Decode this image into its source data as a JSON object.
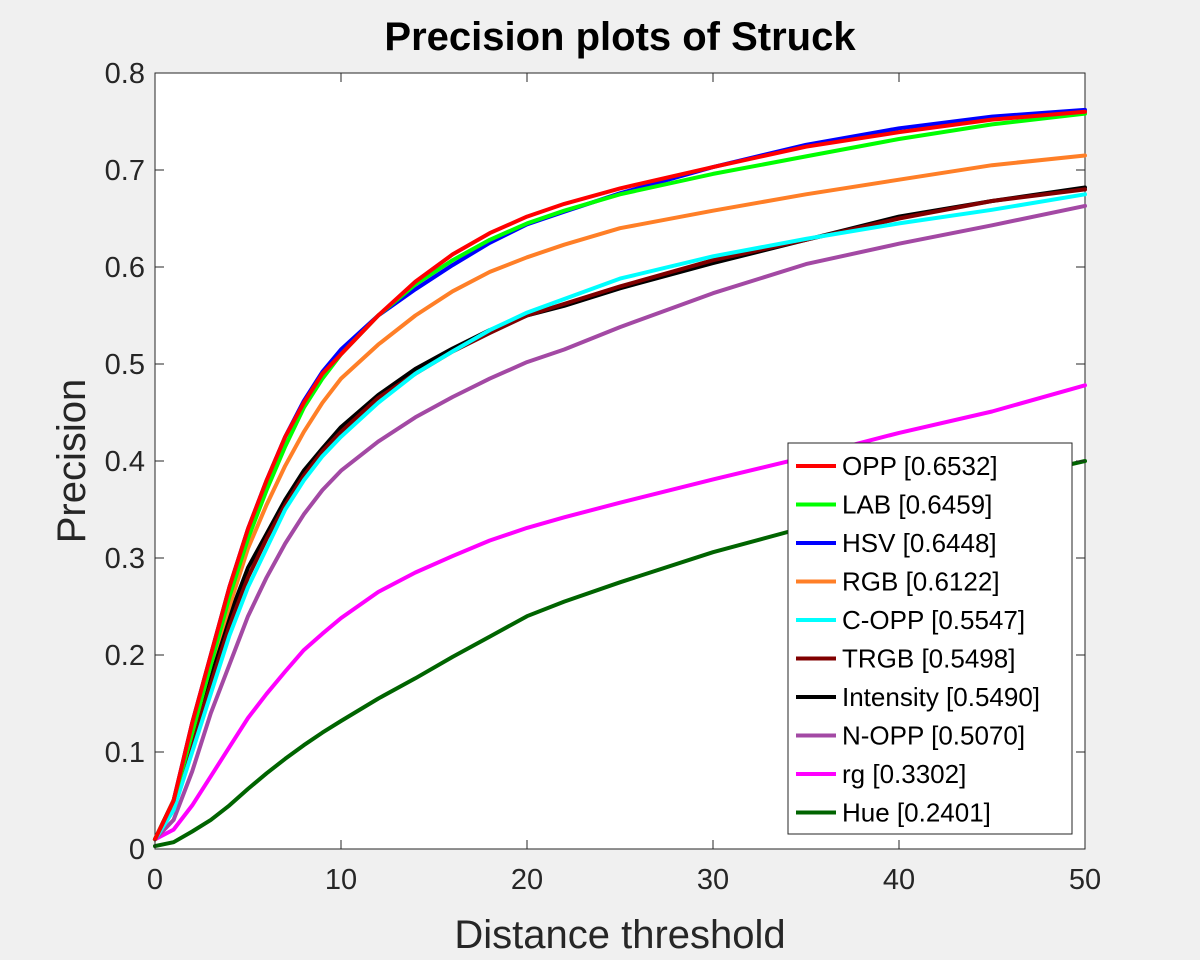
{
  "chart_data": {
    "type": "line",
    "title": "Precision plots of Struck",
    "xlabel": "Distance threshold",
    "ylabel": "Precision",
    "xlim": [
      0,
      50
    ],
    "ylim": [
      0,
      0.8
    ],
    "xticks": [
      0,
      10,
      20,
      30,
      40,
      50
    ],
    "xtick_labels": [
      "0",
      "10",
      "20",
      "30",
      "40",
      "50"
    ],
    "yticks": [
      0,
      0.1,
      0.2,
      0.3,
      0.4,
      0.5,
      0.6,
      0.7,
      0.8
    ],
    "ytick_labels": [
      "0",
      "0.1",
      "0.2",
      "0.3",
      "0.4",
      "0.5",
      "0.6",
      "0.7",
      "0.8"
    ],
    "grid": false,
    "legend_position": "bottom-right",
    "x": [
      0,
      1,
      2,
      3,
      4,
      5,
      6,
      7,
      8,
      9,
      10,
      12,
      14,
      16,
      18,
      20,
      22,
      25,
      30,
      35,
      40,
      45,
      50
    ],
    "series": [
      {
        "name": "OPP [0.6532]",
        "color": "#ff0000",
        "values": [
          0.01,
          0.05,
          0.13,
          0.2,
          0.27,
          0.33,
          0.38,
          0.425,
          0.46,
          0.49,
          0.51,
          0.55,
          0.585,
          0.613,
          0.635,
          0.652,
          0.665,
          0.681,
          0.703,
          0.724,
          0.739,
          0.752,
          0.76
        ]
      },
      {
        "name": "LAB [0.6459]",
        "color": "#00ff00",
        "values": [
          0.01,
          0.05,
          0.12,
          0.19,
          0.26,
          0.32,
          0.37,
          0.415,
          0.455,
          0.485,
          0.51,
          0.55,
          0.582,
          0.607,
          0.628,
          0.645,
          0.658,
          0.675,
          0.696,
          0.714,
          0.732,
          0.747,
          0.758
        ]
      },
      {
        "name": "HSV [0.6448]",
        "color": "#0000ff",
        "values": [
          0.01,
          0.05,
          0.13,
          0.2,
          0.27,
          0.33,
          0.38,
          0.425,
          0.462,
          0.492,
          0.515,
          0.55,
          0.577,
          0.602,
          0.625,
          0.644,
          0.657,
          0.676,
          0.703,
          0.726,
          0.743,
          0.755,
          0.762
        ]
      },
      {
        "name": "RGB [0.6122]",
        "color": "#ff7f27",
        "values": [
          0.01,
          0.05,
          0.12,
          0.19,
          0.25,
          0.31,
          0.355,
          0.395,
          0.43,
          0.46,
          0.485,
          0.52,
          0.55,
          0.575,
          0.595,
          0.61,
          0.623,
          0.64,
          0.658,
          0.675,
          0.69,
          0.705,
          0.715
        ]
      },
      {
        "name": "C-OPP [0.5547]",
        "color": "#00ffff",
        "values": [
          0.01,
          0.04,
          0.1,
          0.16,
          0.22,
          0.27,
          0.31,
          0.35,
          0.38,
          0.405,
          0.425,
          0.46,
          0.49,
          0.513,
          0.535,
          0.553,
          0.567,
          0.588,
          0.611,
          0.629,
          0.645,
          0.659,
          0.675
        ]
      },
      {
        "name": "TRGB [0.5498]",
        "color": "#800000",
        "values": [
          0.01,
          0.045,
          0.11,
          0.17,
          0.23,
          0.28,
          0.32,
          0.355,
          0.385,
          0.41,
          0.43,
          0.465,
          0.49,
          0.513,
          0.532,
          0.55,
          0.562,
          0.58,
          0.607,
          0.628,
          0.65,
          0.668,
          0.68
        ]
      },
      {
        "name": "Intensity [0.5490]",
        "color": "#000000",
        "values": [
          0.01,
          0.05,
          0.12,
          0.18,
          0.24,
          0.29,
          0.325,
          0.36,
          0.39,
          0.413,
          0.435,
          0.468,
          0.495,
          0.516,
          0.535,
          0.55,
          0.56,
          0.578,
          0.604,
          0.628,
          0.652,
          0.668,
          0.682
        ]
      },
      {
        "name": "N-OPP [0.5070]",
        "color": "#a349a4",
        "values": [
          0.01,
          0.03,
          0.08,
          0.14,
          0.19,
          0.24,
          0.28,
          0.315,
          0.345,
          0.37,
          0.39,
          0.42,
          0.445,
          0.466,
          0.485,
          0.502,
          0.515,
          0.538,
          0.573,
          0.603,
          0.624,
          0.643,
          0.663
        ]
      },
      {
        "name": "rg [0.3302]",
        "color": "#ff00ff",
        "values": [
          0.01,
          0.02,
          0.045,
          0.075,
          0.105,
          0.135,
          0.16,
          0.183,
          0.205,
          0.222,
          0.238,
          0.265,
          0.285,
          0.302,
          0.318,
          0.331,
          0.342,
          0.357,
          0.381,
          0.404,
          0.429,
          0.451,
          0.478
        ]
      },
      {
        "name": "Hue [0.2401]",
        "color": "#006400",
        "values": [
          0.003,
          0.007,
          0.018,
          0.03,
          0.045,
          0.062,
          0.078,
          0.093,
          0.107,
          0.12,
          0.132,
          0.155,
          0.176,
          0.198,
          0.219,
          0.24,
          0.255,
          0.275,
          0.306,
          0.332,
          0.356,
          0.378,
          0.4
        ]
      }
    ]
  }
}
